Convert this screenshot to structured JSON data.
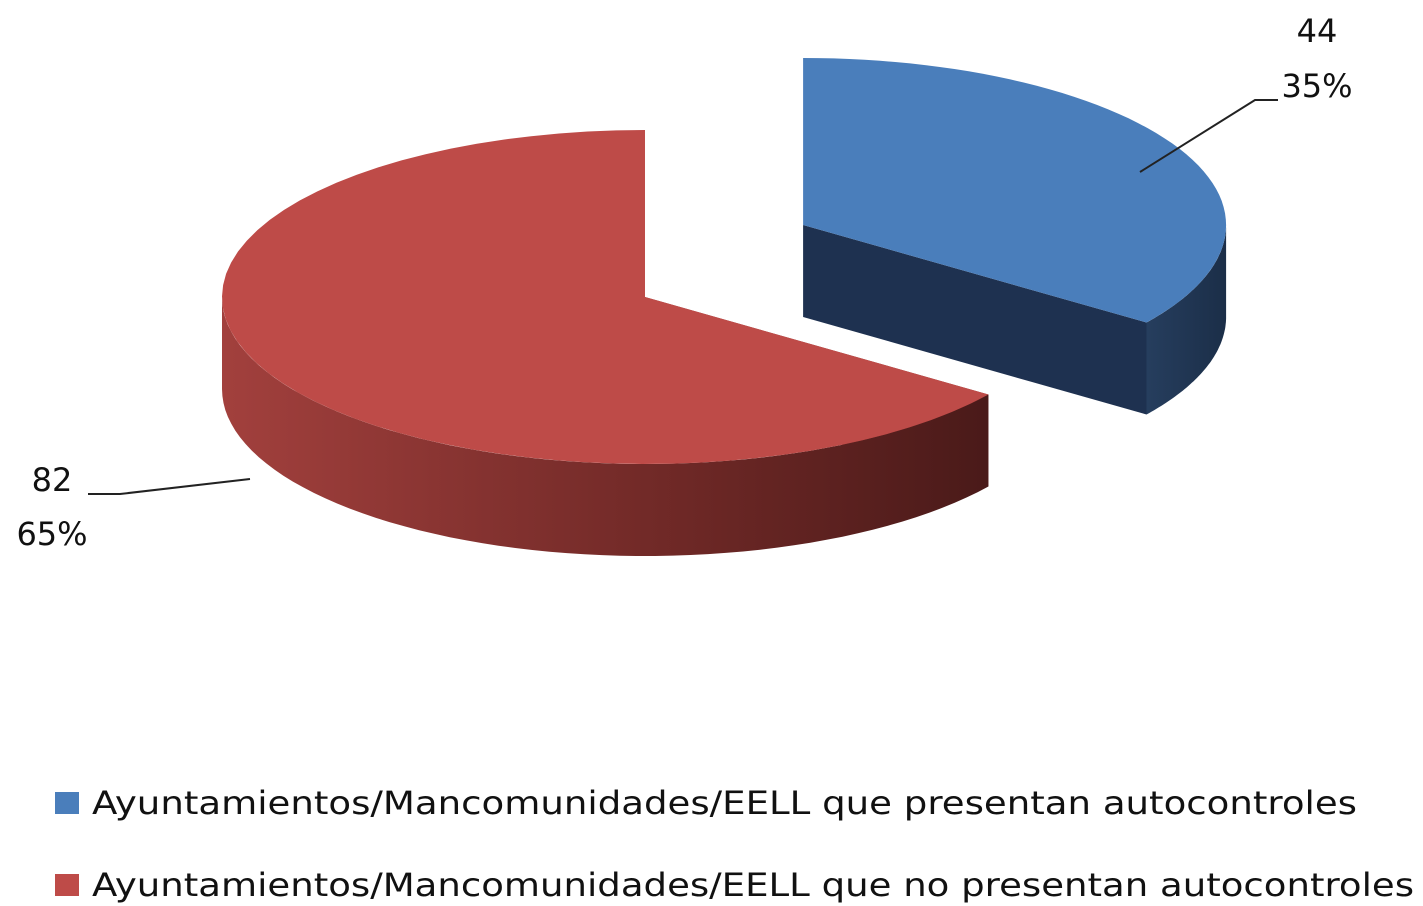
{
  "chart_data": {
    "type": "pie3d",
    "categories": [
      "Ayuntamientos/Mancomunidades/EELL que presentan autocontroles",
      "Ayuntamientos/Mancomunidades/EELL que no presentan autocontroles"
    ],
    "values": [
      44,
      82
    ],
    "percentages": [
      35,
      65
    ],
    "percentage_labels": [
      "35%",
      "65%"
    ],
    "colors": [
      "#4a7ebb",
      "#be4b48"
    ],
    "legend": "bottom"
  }
}
